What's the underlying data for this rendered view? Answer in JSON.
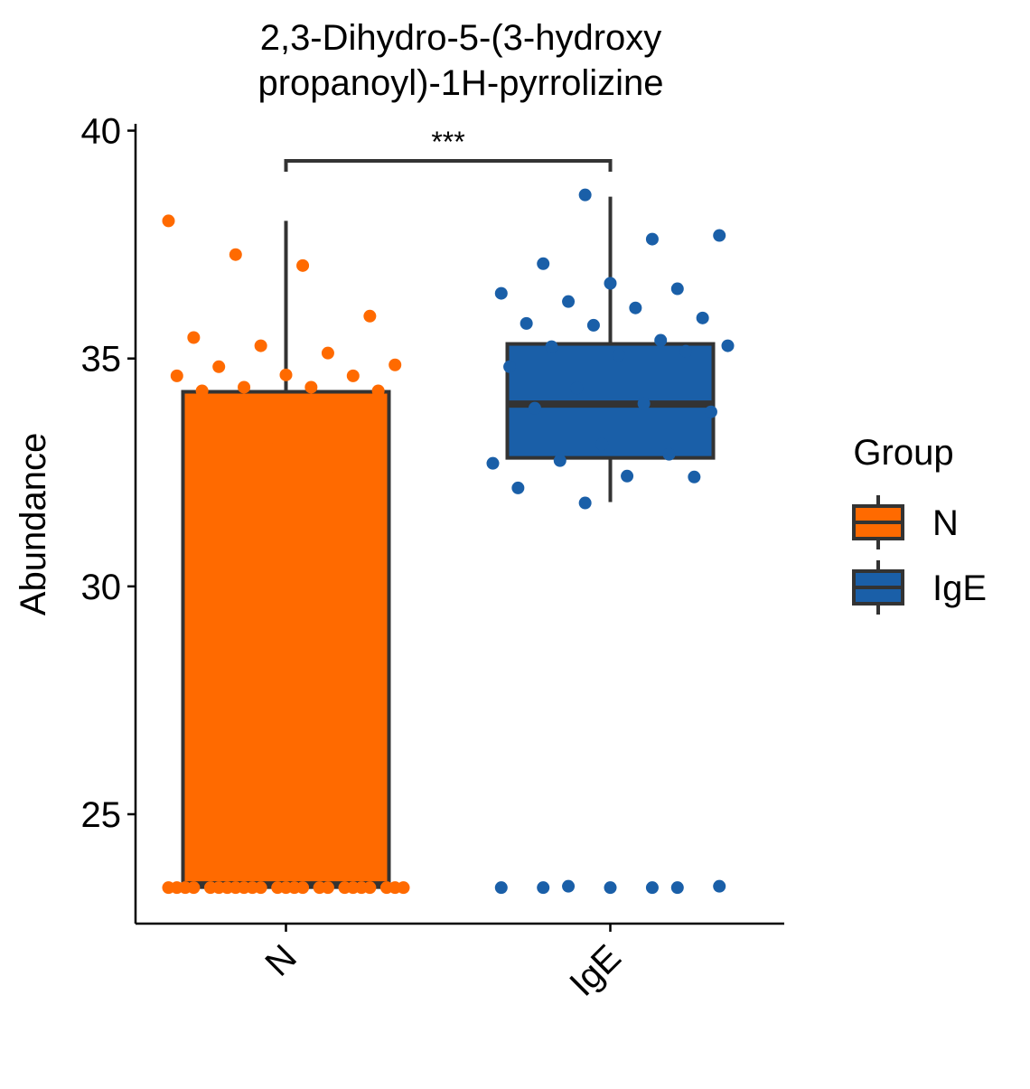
{
  "chart_data": {
    "type": "box",
    "title": [
      "2,3-Dihydro-5-(3-hydroxy",
      "propanoyl)-1H-pyrrolizine"
    ],
    "y_label": "Abundance",
    "categories": [
      "N",
      "IgE"
    ],
    "significance": "***",
    "legend_title": "Group",
    "legend_position": "right",
    "ylim": [
      22.6,
      40.15
    ],
    "yticks": [
      25,
      30,
      35,
      40
    ],
    "grid": false,
    "series": [
      {
        "name": "N",
        "color": "#ff6a00",
        "box": {
          "whisker_low": 23.4,
          "q1": 23.4,
          "median": 23.45,
          "q3": 34.27,
          "whisker_high": 38.02
        },
        "points": [
          38.02,
          37.28,
          37.04,
          35.93,
          35.46,
          35.28,
          35.12,
          34.86,
          34.82,
          34.64,
          34.62,
          34.62,
          34.37,
          34.37,
          34.29,
          34.29,
          33.26,
          32.62,
          23.39,
          23.39,
          23.39,
          23.39,
          23.39,
          23.39,
          23.39,
          23.39,
          23.39,
          23.39,
          23.39,
          23.39,
          23.39,
          23.39,
          23.39,
          23.39,
          23.39,
          23.39,
          23.39,
          23.39,
          23.39,
          23.39,
          23.39,
          23.39
        ]
      },
      {
        "name": "IgE",
        "color": "#1a5fa8",
        "box": {
          "whisker_low": 31.85,
          "q1": 32.82,
          "median": 34.0,
          "q3": 35.32,
          "whisker_high": 38.55
        },
        "points": [
          38.59,
          37.62,
          37.7,
          37.08,
          36.65,
          36.53,
          36.43,
          36.25,
          36.11,
          35.89,
          35.77,
          35.73,
          35.4,
          35.28,
          35.26,
          35.08,
          35.16,
          34.82,
          34.35,
          34.01,
          33.83,
          33.91,
          33.12,
          32.9,
          32.7,
          32.76,
          32.42,
          32.4,
          32.16,
          31.83,
          23.39,
          23.42,
          23.39,
          23.39,
          23.39,
          23.39,
          23.42
        ]
      }
    ]
  }
}
